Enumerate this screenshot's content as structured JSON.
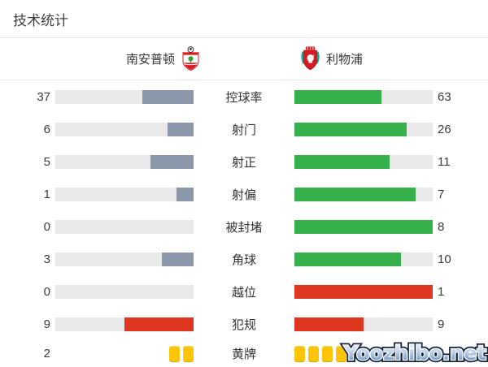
{
  "title": "技术统计",
  "teams": {
    "home": {
      "name": "南安普顿"
    },
    "away": {
      "name": "利物浦"
    }
  },
  "chart_data": {
    "type": "bar",
    "orientation": "horizontal-paired",
    "title": "技术统计",
    "categories": [
      "控球率",
      "射门",
      "射正",
      "射偏",
      "被封堵",
      "角球",
      "越位",
      "犯规",
      "黄牌"
    ],
    "series": [
      {
        "name": "南安普顿",
        "values": [
          37,
          6,
          5,
          1,
          0,
          3,
          0,
          9,
          2
        ]
      },
      {
        "name": "利物浦",
        "values": [
          63,
          26,
          11,
          7,
          8,
          10,
          1,
          9,
          4
        ]
      }
    ],
    "note": "bar fill fraction = value/(home+away); 黄牌 row rendered as yellow card icons; away yellow-card number hidden behind watermark"
  },
  "stats_meta": {
    "tones": [
      "normal",
      "normal",
      "normal",
      "normal",
      "normal",
      "normal",
      "negative",
      "negative",
      "cards"
    ]
  },
  "colors": {
    "home_bar": "#8b97aa",
    "away_bar": "#35b04a",
    "negative_bar": "#df3620",
    "bar_track": "#e9e9e9",
    "card_yellow": "#fcc508"
  },
  "watermark": "Yoozhibo.net"
}
